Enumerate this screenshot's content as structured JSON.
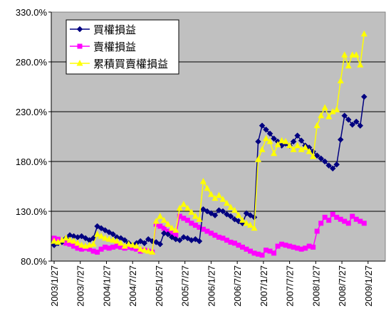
{
  "chart_data": {
    "type": "line",
    "title": "",
    "xlabel": "",
    "ylabel": "",
    "ylim": [
      80,
      330
    ],
    "y_ticks": [
      "80.0%",
      "130.0%",
      "180.0%",
      "230.0%",
      "280.0%",
      "330.0%"
    ],
    "x_tick_labels": [
      "2003/1/27",
      "2003/7/27",
      "2004/1/27",
      "2004/7/27",
      "2005/1/27",
      "2005/7/27",
      "2006/1/27",
      "2006/7/27",
      "2007/1/27",
      "2007/7/27",
      "2008/1/27",
      "2008/7/27",
      "2009/1/27",
      "2009/7/27"
    ],
    "grid": "horizontal",
    "legend_position": "top-left",
    "plot_background": "#C0C0C0",
    "series": [
      {
        "name": "買權損益",
        "color": "#000080",
        "marker": "diamond",
        "values": [
          [
            0,
            96
          ],
          [
            0.15,
            98
          ],
          [
            0.3,
            99
          ],
          [
            0.45,
            103
          ],
          [
            0.6,
            106
          ],
          [
            0.75,
            105
          ],
          [
            0.9,
            104
          ],
          [
            1.05,
            105
          ],
          [
            1.2,
            103
          ],
          [
            1.35,
            101
          ],
          [
            1.5,
            103
          ],
          [
            1.65,
            115
          ],
          [
            1.8,
            113
          ],
          [
            1.95,
            111
          ],
          [
            2.1,
            109
          ],
          [
            2.25,
            107
          ],
          [
            2.4,
            104
          ],
          [
            2.55,
            103
          ],
          [
            2.7,
            101
          ],
          [
            2.85,
            98
          ],
          [
            3.0,
            96
          ],
          [
            3.15,
            98
          ],
          [
            3.3,
            100
          ],
          [
            3.45,
            98
          ],
          [
            3.6,
            102
          ],
          [
            3.75,
            100
          ],
          [
            3.9,
            99
          ],
          [
            4.05,
            97
          ],
          [
            4.2,
            108
          ],
          [
            4.35,
            107
          ],
          [
            4.5,
            104
          ],
          [
            4.65,
            102
          ],
          [
            4.8,
            101
          ],
          [
            4.95,
            104
          ],
          [
            5.1,
            103
          ],
          [
            5.25,
            101
          ],
          [
            5.4,
            102
          ],
          [
            5.55,
            100
          ],
          [
            5.7,
            132
          ],
          [
            5.85,
            130
          ],
          [
            6.0,
            128
          ],
          [
            6.15,
            126
          ],
          [
            6.3,
            131
          ],
          [
            6.45,
            130
          ],
          [
            6.6,
            127
          ],
          [
            6.75,
            125
          ],
          [
            6.9,
            122
          ],
          [
            7.05,
            120
          ],
          [
            7.2,
            118
          ],
          [
            7.35,
            128
          ],
          [
            7.5,
            126
          ],
          [
            7.65,
            124
          ],
          [
            7.8,
            200
          ],
          [
            7.95,
            216
          ],
          [
            8.1,
            212
          ],
          [
            8.25,
            208
          ],
          [
            8.4,
            203
          ],
          [
            8.55,
            200
          ],
          [
            8.7,
            196
          ],
          [
            8.85,
            198
          ],
          [
            9.0,
            196
          ],
          [
            9.15,
            200
          ],
          [
            9.3,
            206
          ],
          [
            9.45,
            201
          ],
          [
            9.6,
            196
          ],
          [
            9.75,
            194
          ],
          [
            9.9,
            190
          ],
          [
            10.05,
            186
          ],
          [
            10.2,
            183
          ],
          [
            10.35,
            180
          ],
          [
            10.5,
            176
          ],
          [
            10.65,
            173
          ],
          [
            10.8,
            177
          ],
          [
            10.95,
            202
          ],
          [
            11.1,
            226
          ],
          [
            11.25,
            222
          ],
          [
            11.4,
            217
          ],
          [
            11.55,
            220
          ],
          [
            11.7,
            216
          ],
          [
            11.85,
            245
          ]
        ]
      },
      {
        "name": "賣權損益",
        "color": "#FF00FF",
        "marker": "square",
        "values": [
          [
            0,
            103
          ],
          [
            0.15,
            102
          ],
          [
            0.3,
            100
          ],
          [
            0.45,
            98
          ],
          [
            0.6,
            97
          ],
          [
            0.75,
            95
          ],
          [
            0.9,
            93
          ],
          [
            1.05,
            92
          ],
          [
            1.2,
            93
          ],
          [
            1.35,
            92
          ],
          [
            1.5,
            90
          ],
          [
            1.65,
            89
          ],
          [
            1.8,
            92
          ],
          [
            1.95,
            94
          ],
          [
            2.1,
            93
          ],
          [
            2.25,
            94
          ],
          [
            2.4,
            95
          ],
          [
            2.55,
            94
          ],
          [
            2.7,
            93
          ],
          [
            2.85,
            94
          ],
          [
            3.0,
            93
          ],
          [
            3.15,
            92
          ],
          [
            3.3,
            90
          ],
          [
            3.45,
            91
          ],
          [
            3.6,
            90
          ],
          [
            3.75,
            89
          ],
          [
            3.9,
            117
          ],
          [
            4.05,
            115
          ],
          [
            4.2,
            113
          ],
          [
            4.35,
            110
          ],
          [
            4.5,
            108
          ],
          [
            4.65,
            106
          ],
          [
            4.8,
            125
          ],
          [
            4.95,
            123
          ],
          [
            5.1,
            121
          ],
          [
            5.25,
            118
          ],
          [
            5.4,
            116
          ],
          [
            5.55,
            114
          ],
          [
            5.7,
            112
          ],
          [
            5.85,
            110
          ],
          [
            6.0,
            108
          ],
          [
            6.15,
            106
          ],
          [
            6.3,
            104
          ],
          [
            6.45,
            103
          ],
          [
            6.6,
            101
          ],
          [
            6.75,
            99
          ],
          [
            6.9,
            98
          ],
          [
            7.05,
            96
          ],
          [
            7.2,
            94
          ],
          [
            7.35,
            92
          ],
          [
            7.5,
            90
          ],
          [
            7.65,
            88
          ],
          [
            7.8,
            87
          ],
          [
            7.95,
            86
          ],
          [
            8.1,
            91
          ],
          [
            8.25,
            90
          ],
          [
            8.4,
            88
          ],
          [
            8.55,
            95
          ],
          [
            8.7,
            97
          ],
          [
            8.85,
            96
          ],
          [
            9.0,
            95
          ],
          [
            9.15,
            94
          ],
          [
            9.3,
            93
          ],
          [
            9.45,
            92
          ],
          [
            9.6,
            93
          ],
          [
            9.75,
            95
          ],
          [
            9.9,
            94
          ],
          [
            10.05,
            110
          ],
          [
            10.2,
            118
          ],
          [
            10.35,
            124
          ],
          [
            10.5,
            121
          ],
          [
            10.65,
            127
          ],
          [
            10.8,
            124
          ],
          [
            10.95,
            122
          ],
          [
            11.1,
            120
          ],
          [
            11.25,
            118
          ],
          [
            11.4,
            125
          ],
          [
            11.55,
            122
          ],
          [
            11.7,
            120
          ],
          [
            11.85,
            118
          ]
        ]
      },
      {
        "name": "累積買賣權損益",
        "color": "#FFFF00",
        "marker": "triangle",
        "values": [
          [
            0,
            100
          ],
          [
            0.15,
            99
          ],
          [
            0.3,
            101
          ],
          [
            0.45,
            103
          ],
          [
            0.6,
            101
          ],
          [
            0.75,
            100
          ],
          [
            0.9,
            98
          ],
          [
            1.05,
            96
          ],
          [
            1.2,
            95
          ],
          [
            1.35,
            96
          ],
          [
            1.5,
            97
          ],
          [
            1.65,
            107
          ],
          [
            1.8,
            105
          ],
          [
            1.95,
            103
          ],
          [
            2.1,
            102
          ],
          [
            2.25,
            101
          ],
          [
            2.4,
            100
          ],
          [
            2.55,
            98
          ],
          [
            2.7,
            95
          ],
          [
            2.85,
            97
          ],
          [
            3.0,
            96
          ],
          [
            3.15,
            95
          ],
          [
            3.3,
            92
          ],
          [
            3.45,
            91
          ],
          [
            3.6,
            90
          ],
          [
            3.75,
            89
          ],
          [
            3.9,
            120
          ],
          [
            4.05,
            125
          ],
          [
            4.2,
            121
          ],
          [
            4.35,
            117
          ],
          [
            4.5,
            113
          ],
          [
            4.65,
            111
          ],
          [
            4.8,
            133
          ],
          [
            4.95,
            137
          ],
          [
            5.1,
            133
          ],
          [
            5.25,
            129
          ],
          [
            5.4,
            125
          ],
          [
            5.55,
            122
          ],
          [
            5.7,
            160
          ],
          [
            5.85,
            153
          ],
          [
            6.0,
            147
          ],
          [
            6.15,
            143
          ],
          [
            6.3,
            146
          ],
          [
            6.45,
            142
          ],
          [
            6.6,
            138
          ],
          [
            6.75,
            134
          ],
          [
            6.9,
            131
          ],
          [
            7.05,
            126
          ],
          [
            7.2,
            121
          ],
          [
            7.35,
            118
          ],
          [
            7.5,
            116
          ],
          [
            7.65,
            113
          ],
          [
            7.8,
            182
          ],
          [
            7.95,
            192
          ],
          [
            8.1,
            203
          ],
          [
            8.25,
            200
          ],
          [
            8.4,
            188
          ],
          [
            8.55,
            197
          ],
          [
            8.7,
            201
          ],
          [
            8.85,
            200
          ],
          [
            9.0,
            196
          ],
          [
            9.15,
            192
          ],
          [
            9.3,
            196
          ],
          [
            9.45,
            192
          ],
          [
            9.6,
            194
          ],
          [
            9.75,
            190
          ],
          [
            9.9,
            185
          ],
          [
            10.05,
            216
          ],
          [
            10.2,
            226
          ],
          [
            10.35,
            234
          ],
          [
            10.5,
            225
          ],
          [
            10.65,
            230
          ],
          [
            10.8,
            232
          ],
          [
            10.95,
            261
          ],
          [
            11.1,
            287
          ],
          [
            11.25,
            276
          ],
          [
            11.4,
            287
          ],
          [
            11.55,
            287
          ],
          [
            11.7,
            277
          ],
          [
            11.85,
            308
          ]
        ]
      }
    ]
  }
}
